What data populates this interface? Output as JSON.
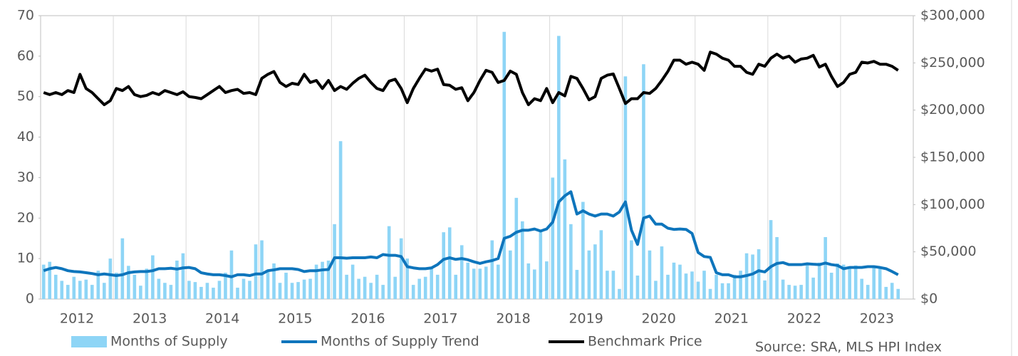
{
  "chart_data": {
    "type": "combo",
    "x_labels": [
      "2012",
      "2013",
      "2014",
      "2015",
      "2016",
      "2017",
      "2018",
      "2019",
      "2020",
      "2021",
      "2022",
      "2023"
    ],
    "ylim": [
      0,
      70
    ],
    "yticks": [
      0,
      10,
      20,
      30,
      40,
      50,
      60,
      70
    ],
    "y2lim": [
      0,
      300000
    ],
    "y2ticks": [
      {
        "value": 0,
        "label": "$0"
      },
      {
        "value": 50000,
        "label": "$50,000"
      },
      {
        "value": 100000,
        "label": "$100,000"
      },
      {
        "value": 150000,
        "label": "$150,000"
      },
      {
        "value": 200000,
        "label": "$200,000"
      },
      {
        "value": 250000,
        "label": "$250,000"
      },
      {
        "value": 300000,
        "label": "$300,000"
      }
    ],
    "series": [
      {
        "name": "Months of Supply",
        "type": "bar",
        "color": "#8ed5f6",
        "values": [
          8.5,
          9.2,
          6,
          4.5,
          3.5,
          5.5,
          4.5,
          4.8,
          3.5,
          7,
          4,
          10,
          6.5,
          15,
          8.2,
          6,
          3.3,
          7.5,
          10.8,
          5,
          4,
          3.5,
          9.5,
          11.3,
          4.5,
          4.2,
          3,
          4,
          2.8,
          4.5,
          6.5,
          12,
          2.8,
          5,
          4.5,
          13.5,
          14.5,
          7,
          8.8,
          4,
          6.5,
          4,
          4.2,
          4.8,
          5,
          8.5,
          9.2,
          9.5,
          18.5,
          39,
          6,
          8.5,
          5,
          5.5,
          4,
          6,
          3.5,
          18,
          5.5,
          15,
          10,
          3.5,
          5,
          5.5,
          8,
          6,
          16.5,
          17.7,
          6,
          13.3,
          9,
          7.5,
          7.5,
          8,
          14.5,
          8.5,
          66,
          12,
          25,
          19.2,
          8.8,
          7.3,
          16.5,
          9.3,
          30,
          65,
          34.5,
          18.5,
          7.2,
          24,
          12,
          13.5,
          17,
          7,
          7,
          2.5,
          55,
          14.5,
          5.8,
          58,
          12,
          4.5,
          13,
          6,
          9,
          8.5,
          6.3,
          6.8,
          4.3,
          7,
          2.5,
          6,
          3.9,
          3.9,
          6,
          7,
          11.3,
          11,
          12.3,
          4.6,
          19.5,
          15.3,
          4.8,
          3.5,
          3.3,
          3.5,
          8.5,
          5.3,
          9,
          15.3,
          6.5,
          8.8,
          8.5,
          7.5,
          8.3,
          5,
          3.5,
          7.8,
          7.5,
          3,
          4,
          2.5
        ]
      },
      {
        "name": "Months of Supply Trend",
        "type": "line",
        "color": "#0e75bc",
        "values": [
          7,
          7.5,
          7.8,
          7.5,
          7,
          6.8,
          6.7,
          6.5,
          6.3,
          6,
          6.2,
          6,
          5.8,
          6,
          6.5,
          6.7,
          6.8,
          6.8,
          7,
          7.5,
          7.5,
          7.6,
          7.4,
          7.7,
          7.8,
          7.5,
          6.5,
          6.2,
          6,
          6,
          5.8,
          5.5,
          6,
          6,
          5.8,
          6.2,
          6.2,
          7,
          7.2,
          7.5,
          7.5,
          7.5,
          7.3,
          6.8,
          7,
          7,
          7.2,
          7.3,
          10.2,
          10.2,
          10.1,
          10.2,
          10.2,
          10.2,
          10.4,
          10.2,
          11,
          10.8,
          10.8,
          10.5,
          8,
          7.7,
          7.5,
          7.5,
          7.7,
          8.5,
          9.8,
          10.2,
          9.8,
          10,
          9.7,
          9.2,
          8.8,
          9.2,
          9.5,
          10,
          15,
          15.5,
          16.5,
          17,
          17,
          17.3,
          16.8,
          17.3,
          19,
          24,
          25.5,
          26.5,
          21,
          21.8,
          21,
          20.5,
          21,
          21,
          20.5,
          21.5,
          24,
          17,
          13.5,
          20,
          20.5,
          18.5,
          18.5,
          17.5,
          17.2,
          17.3,
          17.2,
          16.2,
          11.5,
          10.5,
          10.3,
          6.5,
          6,
          6,
          5.5,
          5.5,
          5.8,
          6.2,
          7,
          6.7,
          8,
          8.8,
          9,
          8.5,
          8.5,
          8.5,
          8.7,
          8.6,
          8.5,
          8.9,
          8.5,
          8.3,
          7.5,
          7.8,
          7.8,
          7.8,
          8,
          8,
          7.8,
          7.5,
          6.8,
          6
        ]
      },
      {
        "name": "Benchmark Price",
        "type": "line",
        "axis": "y2",
        "color": "#000000",
        "values": [
          218600,
          216400,
          218600,
          216400,
          220700,
          218600,
          237900,
          222900,
          218600,
          212100,
          205700,
          210000,
          222900,
          220700,
          225000,
          216400,
          214300,
          215600,
          218600,
          216400,
          220700,
          218600,
          216400,
          219400,
          214300,
          213400,
          212100,
          216400,
          220700,
          225000,
          218600,
          220700,
          222000,
          217700,
          218600,
          216400,
          233600,
          237900,
          240900,
          229300,
          225000,
          228400,
          227100,
          237900,
          229300,
          231400,
          222900,
          231400,
          220700,
          225000,
          222000,
          228400,
          233600,
          237000,
          229300,
          222900,
          220700,
          230600,
          232700,
          222900,
          207900,
          222900,
          233600,
          243400,
          241300,
          243400,
          227100,
          226300,
          222000,
          223700,
          210000,
          218600,
          231400,
          242100,
          240000,
          229300,
          231400,
          241300,
          237900,
          218600,
          205700,
          212100,
          210000,
          222900,
          207900,
          218600,
          215100,
          235700,
          233600,
          222900,
          210900,
          214300,
          233600,
          237000,
          238300,
          222900,
          207000,
          212100,
          212100,
          218600,
          217700,
          222900,
          231400,
          240900,
          252900,
          252900,
          248600,
          250700,
          248600,
          242100,
          261400,
          259300,
          255000,
          252900,
          246400,
          246400,
          240000,
          237900,
          248600,
          246400,
          255000,
          259300,
          255000,
          257100,
          250700,
          254100,
          255000,
          258000,
          245600,
          248600,
          235700,
          225000,
          229300,
          237900,
          240000,
          250700,
          249900,
          251600,
          248600,
          248600,
          246400,
          242100
        ]
      }
    ],
    "annotation": "Source: SRA, MLS HPI Index"
  }
}
